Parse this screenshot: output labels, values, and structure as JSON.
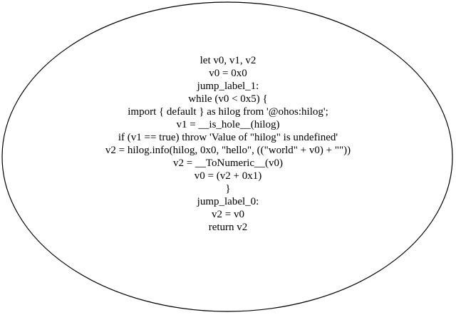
{
  "node": {
    "lines": [
      "let v0, v1, v2",
      "v0 = 0x0",
      "jump_label_1:",
      "while (v0 < 0x5) {",
      "import { default } as hilog from '@ohos:hilog';",
      "v1 = __is_hole__(hilog)",
      "if (v1 == true) throw 'Value of \"hilog\" is undefined'",
      "v2 = hilog.info(hilog, 0x0, \"hello\", ((\"world\" + v0) + \"\"))",
      "v2 = __ToNumeric__(v0)",
      "v0 = (v2 + 0x1)",
      "}",
      "jump_label_0:",
      "v2 = v0",
      "return v2"
    ]
  }
}
